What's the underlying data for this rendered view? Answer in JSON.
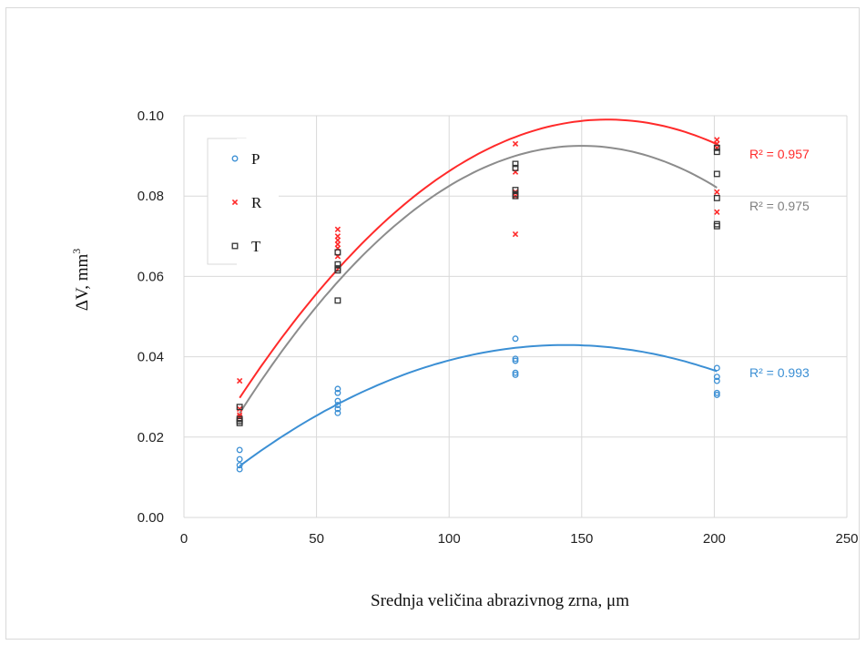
{
  "chart_data": {
    "type": "scatter",
    "xlabel": "Srednja veličina abrazivnog zrna, μm",
    "ylabel_main": "ΔV, mm",
    "ylabel_sup": "3",
    "xlim": [
      0,
      250
    ],
    "ylim": [
      0,
      0.1
    ],
    "x_ticks": [
      0,
      50,
      100,
      150,
      200,
      250
    ],
    "y_ticks": [
      0.0,
      0.02,
      0.04,
      0.06,
      0.08,
      0.1
    ],
    "x_tick_labels": [
      "0",
      "50",
      "100",
      "150",
      "200",
      "250"
    ],
    "y_tick_labels": [
      "0.00",
      "0.02",
      "0.04",
      "0.06",
      "0.08",
      "0.10"
    ],
    "grid": true,
    "legend_position": "top-left",
    "series": [
      {
        "name": "P",
        "marker": "circle",
        "color": "#3b8fd4",
        "points": [
          [
            21,
            0.0168
          ],
          [
            21,
            0.0145
          ],
          [
            21,
            0.013
          ],
          [
            21,
            0.012
          ],
          [
            58,
            0.032
          ],
          [
            58,
            0.031
          ],
          [
            58,
            0.029
          ],
          [
            58,
            0.028
          ],
          [
            58,
            0.027
          ],
          [
            58,
            0.026
          ],
          [
            125,
            0.0445
          ],
          [
            125,
            0.0395
          ],
          [
            125,
            0.039
          ],
          [
            125,
            0.036
          ],
          [
            125,
            0.0355
          ],
          [
            201,
            0.0372
          ],
          [
            201,
            0.035
          ],
          [
            201,
            0.034
          ],
          [
            201,
            0.031
          ],
          [
            201,
            0.0305
          ]
        ],
        "trend": [
          -2e-06,
          0.000575,
          0.0016
        ],
        "r2_label": "R² = 0.993"
      },
      {
        "name": "R",
        "marker": "x",
        "color": "#ff2a2a",
        "points": [
          [
            21,
            0.034
          ],
          [
            21,
            0.027
          ],
          [
            21,
            0.0255
          ],
          [
            21,
            0.025
          ],
          [
            58,
            0.0717
          ],
          [
            58,
            0.07
          ],
          [
            58,
            0.069
          ],
          [
            58,
            0.068
          ],
          [
            58,
            0.067
          ],
          [
            58,
            0.065
          ],
          [
            125,
            0.093
          ],
          [
            125,
            0.086
          ],
          [
            125,
            0.081
          ],
          [
            125,
            0.08
          ],
          [
            125,
            0.0705
          ],
          [
            201,
            0.094
          ],
          [
            201,
            0.093
          ],
          [
            201,
            0.092
          ],
          [
            201,
            0.081
          ],
          [
            201,
            0.076
          ]
        ],
        "trend": [
          -3.6e-06,
          0.00115,
          0.0072
        ],
        "r2_label": "R² = 0.957"
      },
      {
        "name": "T",
        "marker": "square",
        "color": "#333333",
        "points": [
          [
            21,
            0.0275
          ],
          [
            21,
            0.0245
          ],
          [
            21,
            0.024
          ],
          [
            21,
            0.0235
          ],
          [
            58,
            0.066
          ],
          [
            58,
            0.063
          ],
          [
            58,
            0.062
          ],
          [
            58,
            0.0615
          ],
          [
            58,
            0.054
          ],
          [
            125,
            0.088
          ],
          [
            125,
            0.087
          ],
          [
            125,
            0.0815
          ],
          [
            125,
            0.0805
          ],
          [
            125,
            0.08
          ],
          [
            201,
            0.092
          ],
          [
            201,
            0.091
          ],
          [
            201,
            0.0855
          ],
          [
            201,
            0.0795
          ],
          [
            201,
            0.073
          ],
          [
            201,
            0.0725
          ]
        ],
        "trend": [
          -4e-06,
          0.0012,
          0.0025
        ],
        "trend_color": "#8c8c8c",
        "r2_label": "R² = 0.975"
      }
    ],
    "r2_label_colors": [
      "#3b8fd4",
      "#ff2a2a",
      "#7f7f7f"
    ],
    "r2_label_values": [
      0.036,
      0.0905,
      0.0775
    ]
  }
}
